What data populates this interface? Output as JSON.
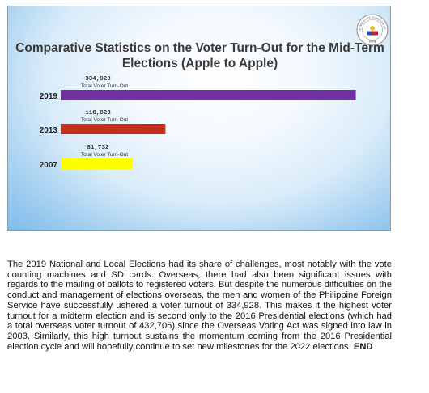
{
  "chart_data": {
    "type": "bar",
    "orientation": "horizontal",
    "title": "Comparative Statistics on the Voter Turn-Out for the Mid-Term Elections (Apple to Apple)",
    "categories": [
      "2019",
      "2013",
      "2007"
    ],
    "values": [
      334928,
      118823,
      81732
    ],
    "value_labels": [
      "334,928",
      "118,823",
      "81,732"
    ],
    "bar_caption": "Total Voter Turn-Out",
    "colors": [
      "#7030a0",
      "#c0301c",
      "#ffff00"
    ],
    "xlim": [
      0,
      350000
    ],
    "grid": false,
    "legend": "none"
  },
  "seal": {
    "top_text": "DEPARTMENT OF FOREIGN AFFAIRS",
    "bottom_text": "OVS"
  },
  "article": {
    "body": "The 2019 National and Local Elections had its share of challenges, most notably with the vote counting machines and SD cards. Overseas, there had also been significant issues with regards to the mailing of ballots to registered voters. But despite the numerous difficulties on the conduct and management of elections overseas, the men and women of the Philippine Foreign Service have successfully ushered a voter turnout of 334,928. This makes it the highest voter turnout for a midterm election and is second only to the 2016 Presidential elections (which had a total overseas voter turnout of 432,706) since the Overseas Voting Act was signed into law in 2003. Similarly, this high turnout sustains the momentum coming from the 2016 Presidential election cycle and will hopefully continue to set new milestones for the 2022 elections.",
    "end_marker": "END"
  },
  "colors": {
    "title_text": "#3a3a3a",
    "slide_bg_edge": "#7fbbe9"
  }
}
